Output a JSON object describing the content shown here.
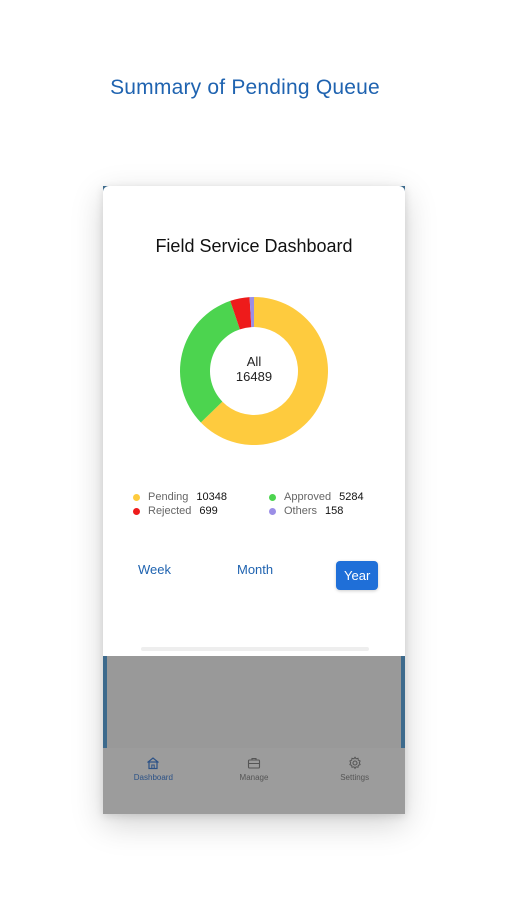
{
  "page_heading": "Summary of Pending Queue",
  "dashboard": {
    "title": "Field Service Dashboard",
    "donut": {
      "center_label": "All",
      "center_value": "16489",
      "segments": [
        {
          "name": "Pending",
          "value": 10348,
          "color": "#fecb3e"
        },
        {
          "name": "Approved",
          "value": 5284,
          "color": "#4cd44f"
        },
        {
          "name": "Rejected",
          "value": 699,
          "color": "#ee1b1b"
        },
        {
          "name": "Others",
          "value": 158,
          "color": "#9b8ee6"
        }
      ]
    },
    "legend": {
      "pending_label": "Pending",
      "pending_value": "10348",
      "approved_label": "Approved",
      "approved_value": "5284",
      "rejected_label": "Rejected",
      "rejected_value": "699",
      "others_label": "Others",
      "others_value": "158"
    },
    "periods": {
      "week": "Week",
      "month": "Month",
      "year": "Year",
      "selected": "Year"
    }
  },
  "tabbar": {
    "dashboard": "Dashboard",
    "manage": "Manage",
    "settings": "Settings",
    "active": "Dashboard"
  },
  "colors": {
    "accent": "#1f63b0",
    "selected_button": "#1f6fd8",
    "frame": "#3d6a8c",
    "overlay": "#999999"
  }
}
